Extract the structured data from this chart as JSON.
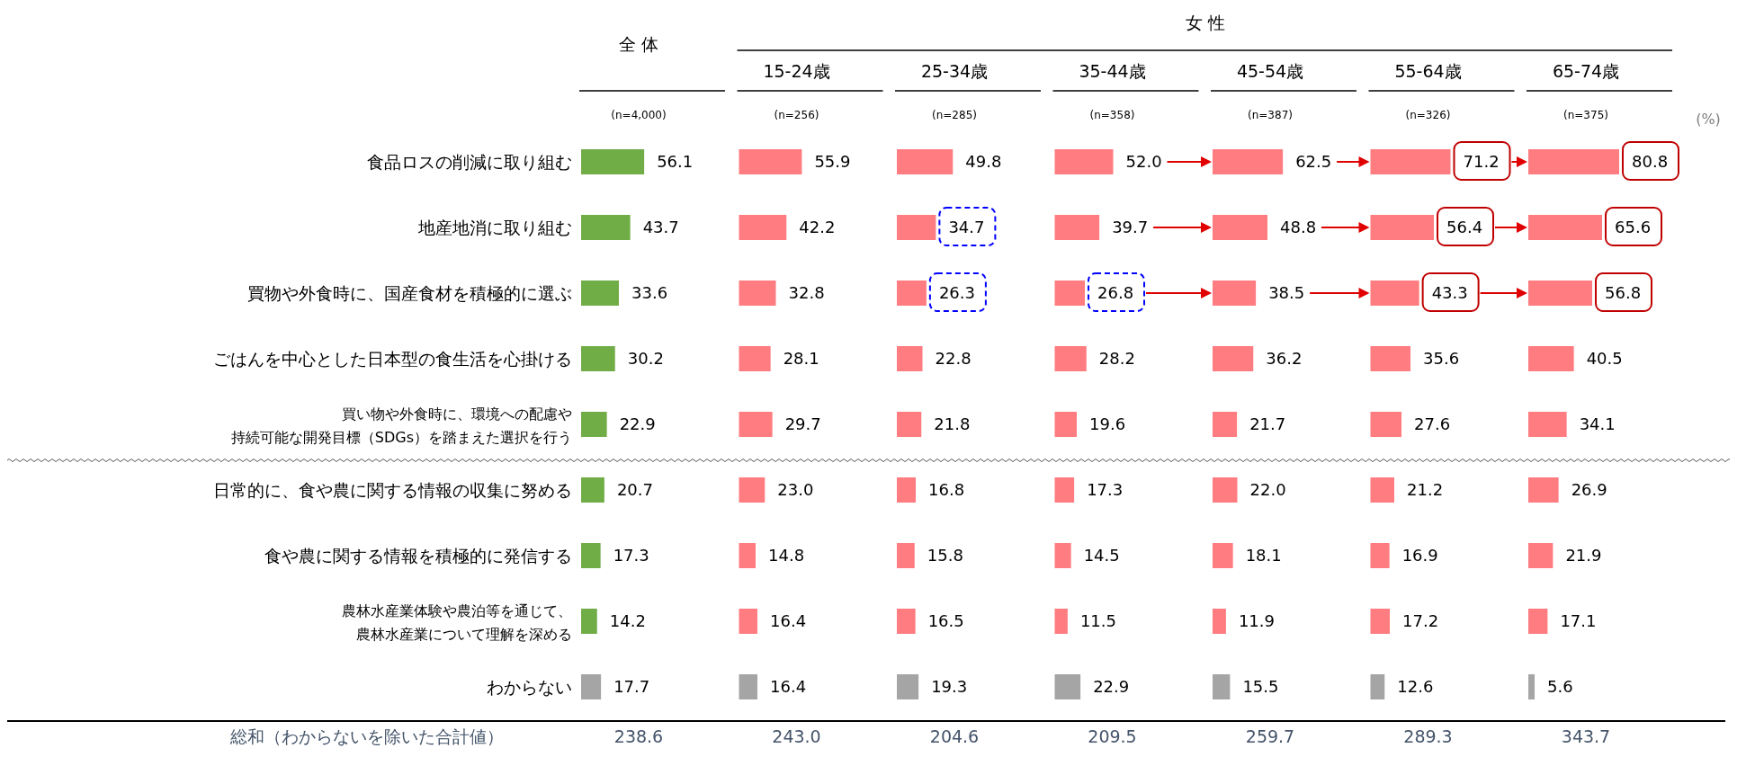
{
  "chart_data": [
    {
      "type": "bar",
      "orientation": "horizontal",
      "title": "全 体",
      "subtitle": "(n=4,000)",
      "categories": [
        "食品ロスの削減に取り組む",
        "地産地消に取り組む",
        "買物や外食時に、国産食材を積極的に選ぶ",
        "ごはんを中心とした日本型の食生活を心掛ける",
        "買い物や外食時に、環境への配慮や持続可能な開発目標（SDGs）を踏まえた選択を行う",
        "日常的に、食や農に関する情報の収集に努める",
        "食や農に関する情報を積極的に発信する",
        "農林水産業体験や農泊等を通じて、農林水産業について理解を深める",
        "わからない"
      ],
      "values": [
        56.1,
        43.7,
        33.6,
        30.2,
        22.9,
        20.7,
        17.3,
        14.2,
        17.7
      ],
      "value_labels": [
        "56.1",
        "43.7",
        "33.6",
        "30.2",
        "22.9",
        "20.7",
        "17.3",
        "14.2",
        "17.7"
      ],
      "colors": [
        "#70ad47",
        "#70ad47",
        "#70ad47",
        "#70ad47",
        "#70ad47",
        "#70ad47",
        "#70ad47",
        "#70ad47",
        "#a5a5a5"
      ],
      "annotations": [
        "総和（わからないを除いた合計値）",
        "238.6"
      ]
    },
    {
      "type": "bar",
      "orientation": "horizontal",
      "title": "15-24歳",
      "subtitle": "(n=256)",
      "values": [
        55.9,
        42.2,
        32.8,
        28.1,
        29.7,
        23.0,
        14.8,
        16.4,
        16.4
      ],
      "value_labels": [
        "55.9",
        "42.2",
        "32.8",
        "28.1",
        "29.7",
        "23.0",
        "14.8",
        "16.4",
        "16.4"
      ],
      "colors": [
        "#ff7c80",
        "#ff7c80",
        "#ff7c80",
        "#ff7c80",
        "#ff7c80",
        "#ff7c80",
        "#ff7c80",
        "#ff7c80",
        "#a5a5a5"
      ],
      "annotations": [
        "女 性",
        "243.0"
      ]
    },
    {
      "type": "bar",
      "orientation": "horizontal",
      "title": "25-34歳",
      "subtitle": "(n=285)",
      "values": [
        49.8,
        34.7,
        26.3,
        22.8,
        21.8,
        16.8,
        15.8,
        16.5,
        19.3
      ],
      "value_labels": [
        "49.8",
        "34.7",
        "26.3",
        "22.8",
        "21.8",
        "16.8",
        "15.8",
        "16.5",
        "19.3"
      ],
      "colors": [
        "#ff7c80",
        "#ff7c80",
        "#ff7c80",
        "#ff7c80",
        "#ff7c80",
        "#ff7c80",
        "#ff7c80",
        "#ff7c80",
        "#a5a5a5"
      ],
      "annotations": [
        "204.6"
      ]
    },
    {
      "type": "bar",
      "orientation": "horizontal",
      "title": "35-44歳",
      "subtitle": "(n=358)",
      "values": [
        52.0,
        39.7,
        26.8,
        28.2,
        19.6,
        17.3,
        14.5,
        11.5,
        22.9
      ],
      "value_labels": [
        "52.0",
        "39.7",
        "26.8",
        "28.2",
        "19.6",
        "17.3",
        "14.5",
        "11.5",
        "22.9"
      ],
      "colors": [
        "#ff7c80",
        "#ff7c80",
        "#ff7c80",
        "#ff7c80",
        "#ff7c80",
        "#ff7c80",
        "#ff7c80",
        "#ff7c80",
        "#a5a5a5"
      ],
      "annotations": [
        "209.5"
      ]
    },
    {
      "type": "bar",
      "orientation": "horizontal",
      "title": "45-54歳",
      "subtitle": "(n=387)",
      "values": [
        62.5,
        48.8,
        38.5,
        36.2,
        21.7,
        22.0,
        18.1,
        11.9,
        15.5
      ],
      "value_labels": [
        "62.5",
        "48.8",
        "38.5",
        "36.2",
        "21.7",
        "22.0",
        "18.1",
        "11.9",
        "15.5"
      ],
      "colors": [
        "#ff7c80",
        "#ff7c80",
        "#ff7c80",
        "#ff7c80",
        "#ff7c80",
        "#ff7c80",
        "#ff7c80",
        "#ff7c80",
        "#a5a5a5"
      ],
      "annotations": [
        "259.7"
      ]
    },
    {
      "type": "bar",
      "orientation": "horizontal",
      "title": "55-64歳",
      "subtitle": "(n=326)",
      "values": [
        71.2,
        56.4,
        43.3,
        35.6,
        27.6,
        21.2,
        16.9,
        17.2,
        12.6
      ],
      "value_labels": [
        "71.2",
        "56.4",
        "43.3",
        "35.6",
        "27.6",
        "21.2",
        "16.9",
        "17.2",
        "12.6"
      ],
      "colors": [
        "#ff7c80",
        "#ff7c80",
        "#ff7c80",
        "#ff7c80",
        "#ff7c80",
        "#ff7c80",
        "#ff7c80",
        "#ff7c80",
        "#a5a5a5"
      ],
      "annotations": [
        "289.3"
      ]
    },
    {
      "type": "bar",
      "orientation": "horizontal",
      "title": "65-74歳",
      "subtitle": "(n=375)",
      "xlabel": "(%)",
      "values": [
        80.8,
        65.6,
        56.8,
        40.5,
        34.1,
        26.9,
        21.9,
        17.1,
        5.6
      ],
      "value_labels": [
        "80.8",
        "65.6",
        "56.8",
        "40.5",
        "34.1",
        "26.9",
        "21.9",
        "17.1",
        "5.6"
      ],
      "colors": [
        "#ff7c80",
        "#ff7c80",
        "#ff7c80",
        "#ff7c80",
        "#ff7c80",
        "#ff7c80",
        "#ff7c80",
        "#ff7c80",
        "#a5a5a5"
      ],
      "annotations": [
        "343.7"
      ]
    }
  ]
}
